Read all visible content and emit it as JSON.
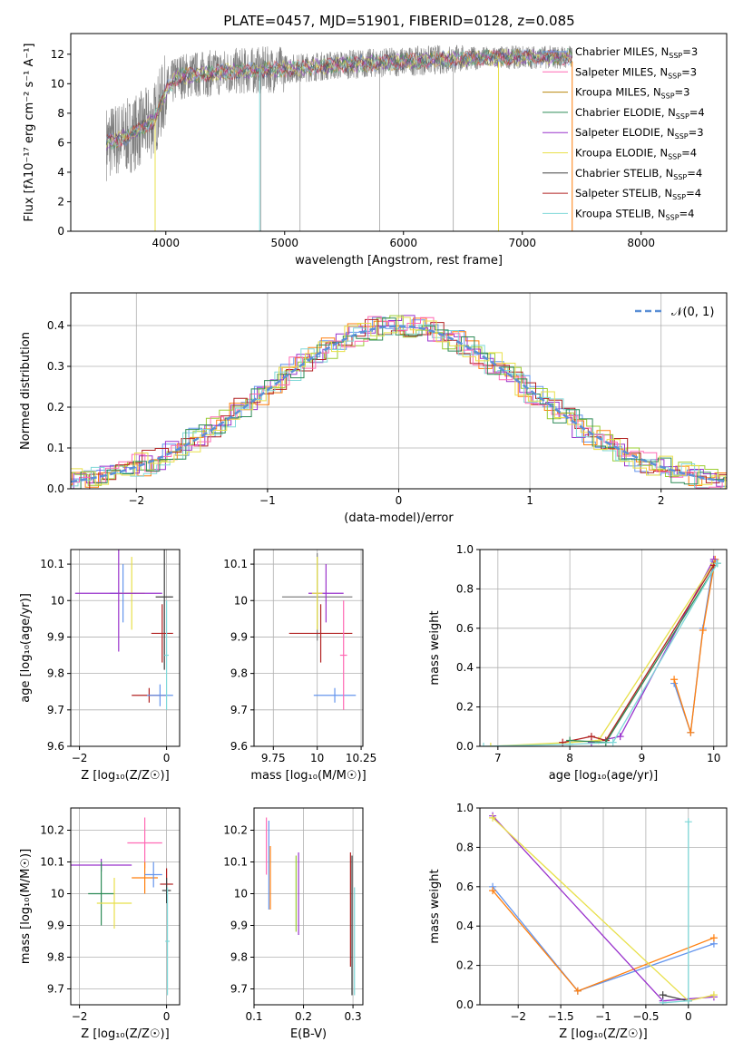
{
  "figure": {
    "title": "PLATE=0457, MJD=51901, FIBERID=0128, z=0.085"
  },
  "chart_data": [
    {
      "id": "spectrum",
      "type": "line",
      "title": "PLATE=0457, MJD=51901, FIBERID=0128, z=0.085",
      "xlabel": "wavelength [Angstrom, rest frame]",
      "ylabel": "Flux [fλ10⁻¹⁷ erg cm⁻² s⁻¹ A⁻¹]",
      "xlim": [
        3200,
        8720
      ],
      "ylim": [
        0,
        13.4
      ],
      "xticks": [
        4000,
        5000,
        6000,
        7000,
        8000
      ],
      "yticks": [
        0,
        2,
        4,
        6,
        8,
        10,
        12
      ],
      "grid": false,
      "legend_position": "right",
      "observed": {
        "color": "#808080",
        "note_points": [
          [
            3500,
            6.0
          ],
          [
            3700,
            6.5
          ],
          [
            3900,
            7.5
          ],
          [
            4000,
            9.5
          ],
          [
            4100,
            10.5
          ],
          [
            4500,
            10.8
          ],
          [
            5000,
            11.0
          ],
          [
            5500,
            11.3
          ],
          [
            6000,
            11.5
          ],
          [
            6500,
            11.7
          ],
          [
            7000,
            11.8
          ],
          [
            7400,
            11.8
          ]
        ]
      },
      "series": [
        {
          "name": "Chabrier MILES, N_SSP=3",
          "color": "#6495ed"
        },
        {
          "name": "Salpeter MILES, N_SSP=3",
          "color": "#ff69b4"
        },
        {
          "name": "Kroupa MILES, N_SSP=3",
          "color": "#b8860b"
        },
        {
          "name": "Chabrier ELODIE, N_SSP=4",
          "color": "#2e8b57"
        },
        {
          "name": "Salpeter ELODIE, N_SSP=3",
          "color": "#9932cc"
        },
        {
          "name": "Kroupa ELODIE, N_SSP=4",
          "color": "#e8e04a"
        },
        {
          "name": "Chabrier STELIB, N_SSP=4",
          "color": "#404040"
        },
        {
          "name": "Salpeter STELIB, N_SSP=4",
          "color": "#b22222"
        },
        {
          "name": "Kroupa STELIB, N_SSP=4",
          "color": "#7fd8d8"
        }
      ]
    },
    {
      "id": "residuals",
      "type": "line",
      "xlabel": "(data-model)/error",
      "ylabel": "Normed distribution",
      "xlim": [
        -2.5,
        2.5
      ],
      "ylim": [
        0,
        0.48
      ],
      "xticks": [
        -2,
        -1,
        0,
        1,
        2
      ],
      "yticks": [
        0.0,
        0.1,
        0.2,
        0.3,
        0.4
      ],
      "grid": true,
      "legend_position": "top-right",
      "legend": "𝒩(0, 1)",
      "reference_curve": {
        "name": "𝒩(0, 1)",
        "color": "#5b8fd6",
        "mu": 0,
        "sigma": 1
      }
    },
    {
      "id": "age_vs_Z",
      "type": "scatter",
      "xlabel": "Z [log₁₀(Z/Z☉)]",
      "ylabel": "age  [log₁₀(age/yr)]",
      "xlim": [
        -2.2,
        0.3
      ],
      "ylim": [
        9.6,
        10.14
      ],
      "xticks": [
        -2,
        0
      ],
      "yticks": [
        9.6,
        9.7,
        9.8,
        9.9,
        10.0,
        10.1
      ],
      "grid": true,
      "points": [
        {
          "x": -1.0,
          "y": 10.02,
          "xerr": 0.3,
          "yerr": 0.08,
          "color": "#6495ed"
        },
        {
          "x": -0.8,
          "y": 10.02,
          "xerr": 0.3,
          "yerr": 0.1,
          "color": "#e8e04a"
        },
        {
          "x": -1.1,
          "y": 10.02,
          "xerr": 1.0,
          "yerr": 0.16,
          "color": "#9932cc"
        },
        {
          "x": -0.05,
          "y": 10.01,
          "xerr": 0.2,
          "yerr": 0.2,
          "color": "#404040"
        },
        {
          "x": -0.1,
          "y": 9.91,
          "xerr": 0.25,
          "yerr": 0.08,
          "color": "#b22222"
        },
        {
          "x": -0.4,
          "y": 9.74,
          "xerr": 0.4,
          "yerr": 0.02,
          "color": "#b22222"
        },
        {
          "x": -0.15,
          "y": 9.74,
          "xerr": 0.3,
          "yerr": 0.03,
          "color": "#6495ed"
        },
        {
          "x": 0.0,
          "y": 9.85,
          "xerr": 0.05,
          "yerr": 0.15,
          "color": "#7fd8d8"
        }
      ]
    },
    {
      "id": "age_vs_mass",
      "type": "scatter",
      "xlabel": "mass [log₁₀(M/M☉)]",
      "ylabel": "",
      "xlim": [
        9.64,
        10.26
      ],
      "ylim": [
        9.6,
        10.14
      ],
      "xticks": [
        9.75,
        10.0,
        10.25
      ],
      "yticks": [
        9.6,
        9.7,
        9.8,
        9.9,
        10.0,
        10.1
      ],
      "grid": true,
      "points": [
        {
          "x": 10.0,
          "y": 10.01,
          "xerr": 0.2,
          "yerr": 0.12,
          "color": "#808080"
        },
        {
          "x": 10.05,
          "y": 10.02,
          "xerr": 0.1,
          "yerr": 0.08,
          "color": "#9932cc"
        },
        {
          "x": 10.1,
          "y": 9.74,
          "xerr": 0.12,
          "yerr": 0.02,
          "color": "#6495ed"
        },
        {
          "x": 10.02,
          "y": 9.91,
          "xerr": 0.18,
          "yerr": 0.08,
          "color": "#b22222"
        },
        {
          "x": 10.15,
          "y": 9.85,
          "xerr": 0.02,
          "yerr": 0.15,
          "color": "#ff69b4"
        },
        {
          "x": 10.0,
          "y": 10.02,
          "xerr": 0.03,
          "yerr": 0.1,
          "color": "#e8e04a"
        }
      ]
    },
    {
      "id": "weight_vs_age",
      "type": "line",
      "xlabel": "age  [log₁₀(age/yr)]",
      "ylabel": "mass weight",
      "xlim": [
        6.75,
        10.18
      ],
      "ylim": [
        0,
        1.0
      ],
      "xticks": [
        7,
        8,
        9,
        10
      ],
      "yticks": [
        0.0,
        0.2,
        0.4,
        0.6,
        0.8,
        1.0
      ],
      "grid": true,
      "series": [
        {
          "color": "#6495ed",
          "x": [
            9.45,
            9.68,
            9.85,
            10.0
          ],
          "y": [
            0.32,
            0.07,
            0.6,
            0.94
          ]
        },
        {
          "color": "#ff7f0e",
          "x": [
            9.45,
            9.68,
            9.85,
            10.02
          ],
          "y": [
            0.34,
            0.07,
            0.59,
            0.95
          ]
        },
        {
          "color": "#9932cc",
          "x": [
            8.3,
            8.7,
            10.0
          ],
          "y": [
            0.02,
            0.05,
            0.95
          ]
        },
        {
          "color": "#e8e04a",
          "x": [
            6.9,
            8.0,
            8.4,
            10.0
          ],
          "y": [
            0.0,
            0.02,
            0.03,
            0.93
          ]
        },
        {
          "color": "#b22222",
          "x": [
            7.9,
            8.3,
            8.5,
            10.0
          ],
          "y": [
            0.02,
            0.05,
            0.03,
            0.92
          ]
        },
        {
          "color": "#2e8b57",
          "x": [
            8.0,
            8.5,
            10.05
          ],
          "y": [
            0.03,
            0.02,
            0.93
          ]
        },
        {
          "color": "#7fd8d8",
          "x": [
            6.8,
            8.0,
            8.6,
            10.05
          ],
          "y": [
            0.0,
            0.01,
            0.02,
            0.93
          ]
        }
      ]
    },
    {
      "id": "mass_vs_Z",
      "type": "scatter",
      "xlabel": "Z [log₁₀(Z/Z☉)]",
      "ylabel": "mass [log₁₀(M/M☉)]",
      "xlim": [
        -2.2,
        0.3
      ],
      "ylim": [
        9.65,
        10.27
      ],
      "xticks": [
        -2,
        0
      ],
      "yticks": [
        9.7,
        9.8,
        9.9,
        10.0,
        10.1,
        10.2
      ],
      "grid": true,
      "points": [
        {
          "x": -1.5,
          "y": 10.09,
          "xerr": 0.7,
          "yerr": 0.02,
          "color": "#9932cc"
        },
        {
          "x": -0.5,
          "y": 10.16,
          "xerr": 0.4,
          "yerr": 0.08,
          "color": "#ff69b4"
        },
        {
          "x": -1.5,
          "y": 10.0,
          "xerr": 0.3,
          "yerr": 0.1,
          "color": "#2e8b57"
        },
        {
          "x": -1.2,
          "y": 9.97,
          "xerr": 0.4,
          "yerr": 0.08,
          "color": "#e8e04a"
        },
        {
          "x": -0.5,
          "y": 10.05,
          "xerr": 0.3,
          "yerr": 0.05,
          "color": "#ff7f0e"
        },
        {
          "x": -0.3,
          "y": 10.06,
          "xerr": 0.2,
          "yerr": 0.04,
          "color": "#6495ed"
        },
        {
          "x": 0.0,
          "y": 10.03,
          "xerr": 0.15,
          "yerr": 0.05,
          "color": "#b22222"
        },
        {
          "x": 0.0,
          "y": 10.01,
          "xerr": 0.1,
          "yerr": 0.04,
          "color": "#404040"
        },
        {
          "x": 0.02,
          "y": 9.85,
          "xerr": 0.05,
          "yerr": 0.17,
          "color": "#7fd8d8"
        }
      ]
    },
    {
      "id": "mass_vs_EBV",
      "type": "scatter",
      "xlabel": "E(B-V)",
      "ylabel": "",
      "xlim": [
        0.1,
        0.32
      ],
      "ylim": [
        9.65,
        10.27
      ],
      "xticks": [
        0.1,
        0.2,
        0.3
      ],
      "yticks": [
        9.7,
        9.8,
        9.9,
        10.0,
        10.1,
        10.2
      ],
      "grid": true,
      "points": [
        {
          "x": 0.125,
          "y": 10.15,
          "xerr": 0.0,
          "yerr": 0.09,
          "color": "#ff69b4"
        },
        {
          "x": 0.13,
          "y": 10.09,
          "xerr": 0.0,
          "yerr": 0.14,
          "color": "#6495ed"
        },
        {
          "x": 0.133,
          "y": 10.05,
          "xerr": 0.0,
          "yerr": 0.1,
          "color": "#ff7f0e"
        },
        {
          "x": 0.185,
          "y": 10.0,
          "xerr": 0.0,
          "yerr": 0.12,
          "color": "#9acd32"
        },
        {
          "x": 0.19,
          "y": 10.0,
          "xerr": 0.0,
          "yerr": 0.13,
          "color": "#9932cc"
        },
        {
          "x": 0.295,
          "y": 9.95,
          "xerr": 0.0,
          "yerr": 0.18,
          "color": "#b22222"
        },
        {
          "x": 0.298,
          "y": 9.9,
          "xerr": 0.0,
          "yerr": 0.22,
          "color": "#404040"
        },
        {
          "x": 0.303,
          "y": 9.85,
          "xerr": 0.0,
          "yerr": 0.17,
          "color": "#7fd8d8"
        }
      ]
    },
    {
      "id": "weight_vs_Z",
      "type": "line",
      "xlabel": "Z [log₁₀(Z/Z☉)]",
      "ylabel": "mass weight",
      "xlim": [
        -2.45,
        0.45
      ],
      "ylim": [
        0,
        1.0
      ],
      "xticks": [
        -2.0,
        -1.5,
        -1.0,
        -0.5,
        0.0
      ],
      "yticks": [
        0.0,
        0.2,
        0.4,
        0.6,
        0.8,
        1.0
      ],
      "grid": true,
      "series": [
        {
          "color": "#6495ed",
          "x": [
            -2.3,
            -1.3,
            0.3
          ],
          "y": [
            0.6,
            0.07,
            0.31
          ]
        },
        {
          "color": "#ff7f0e",
          "x": [
            -2.3,
            -1.3,
            0.3
          ],
          "y": [
            0.58,
            0.07,
            0.34
          ]
        },
        {
          "color": "#9932cc",
          "x": [
            -2.3,
            -0.3,
            0.3
          ],
          "y": [
            0.96,
            0.02,
            0.04
          ]
        },
        {
          "color": "#e8e04a",
          "x": [
            -2.3,
            0.0,
            0.3
          ],
          "y": [
            0.95,
            0.02,
            0.05
          ]
        },
        {
          "color": "#404040",
          "x": [
            -0.3,
            0.0
          ],
          "y": [
            0.05,
            0.02
          ]
        },
        {
          "color": "#7fd8d8",
          "x": [
            0.0,
            0.0,
            -0.3
          ],
          "y": [
            0.93,
            0.02,
            0.01
          ]
        }
      ]
    }
  ]
}
